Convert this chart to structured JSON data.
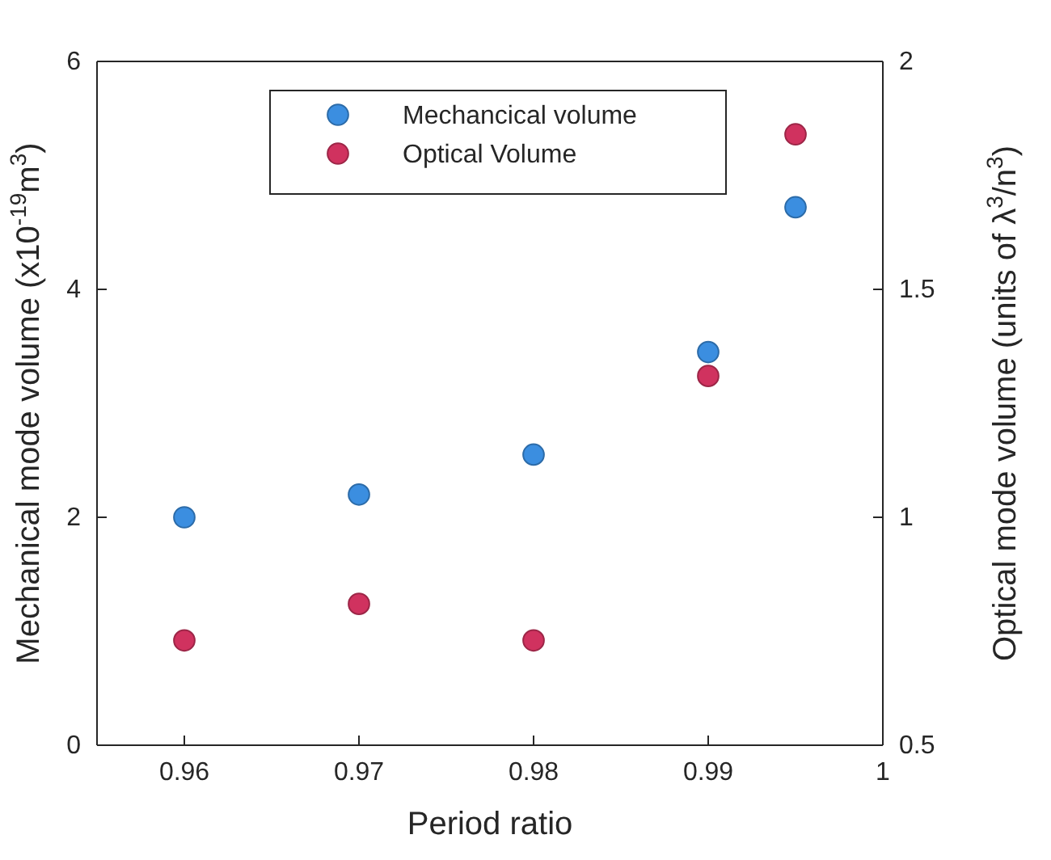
{
  "chart_data": {
    "type": "scatter",
    "xlabel": "Period ratio",
    "ylabel": "Mechanical mode volume (x10$^{-19}$m$^{3}$)",
    "y2label": "Optical mode volume (units of λ$^{3}$/n$^{3}$)",
    "x": [
      0.96,
      0.97,
      0.98,
      0.99,
      0.995
    ],
    "series": [
      {
        "name": "Mechancical volume",
        "color": "#3b8ee0",
        "values": [
          2.0,
          2.2,
          2.55,
          3.45,
          4.72
        ]
      },
      {
        "name": "Optical Volume",
        "color": "#d0325f",
        "axis": "y2",
        "values": [
          0.73,
          0.81,
          0.73,
          1.31,
          1.84
        ]
      }
    ],
    "xlim": [
      0.955,
      1
    ],
    "xticks": [
      0.96,
      0.97,
      0.98,
      0.99,
      1
    ],
    "ylim": [
      0,
      6
    ],
    "yticks": [
      0,
      2,
      4,
      6
    ],
    "y2lim": [
      0.5,
      2
    ],
    "y2ticks": [
      0.5,
      1,
      1.5,
      2
    ],
    "marker": "circle",
    "legend": "top",
    "grid": false
  }
}
